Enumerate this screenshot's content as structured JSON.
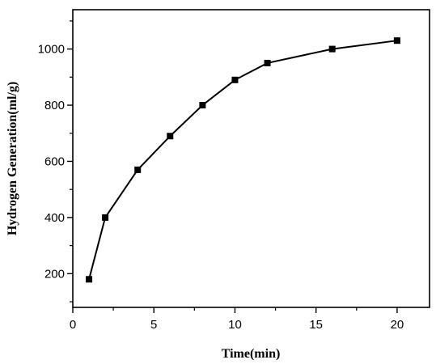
{
  "chart_data": {
    "type": "line",
    "xlabel": "Time(min)",
    "ylabel": "Hydrogen Generation(ml/g)",
    "xlim": [
      0,
      22
    ],
    "ylim": [
      80,
      1140
    ],
    "xticks": [
      0,
      5,
      10,
      15,
      20
    ],
    "yticks": [
      200,
      400,
      600,
      800,
      1000
    ],
    "grid": false,
    "marker": "square",
    "series": [
      {
        "x": [
          1,
          2,
          4,
          6,
          8,
          10,
          12,
          16,
          20
        ],
        "y": [
          180,
          400,
          570,
          690,
          800,
          890,
          950,
          1000,
          1030
        ]
      }
    ]
  }
}
